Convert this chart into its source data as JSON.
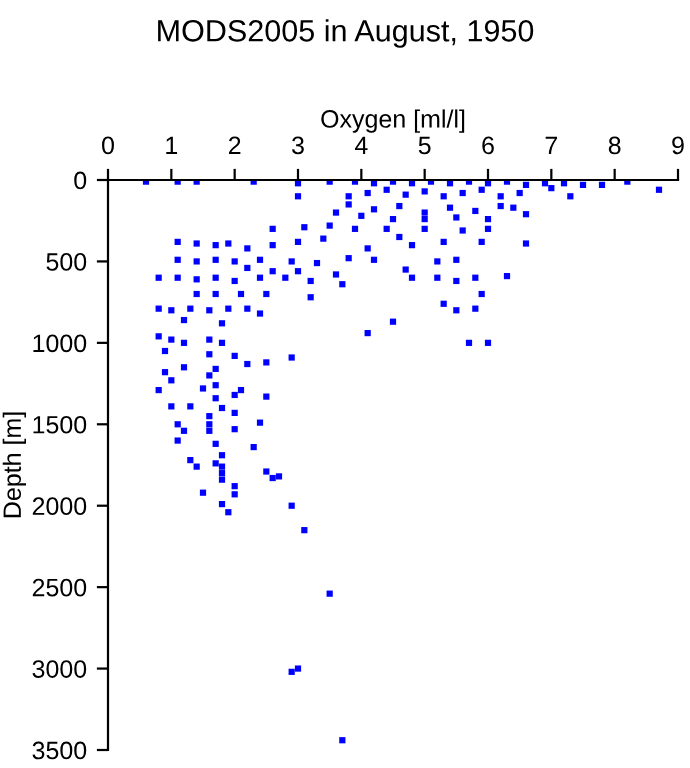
{
  "chart_data": {
    "type": "scatter",
    "title": "MODS2005 in August, 1950",
    "xlabel": "Oxygen [ml/l]",
    "ylabel": "Depth [m]",
    "xlim": [
      0,
      9
    ],
    "xticks": [
      0,
      1,
      2,
      3,
      4,
      5,
      6,
      7,
      8,
      9
    ],
    "ylim": [
      3500,
      0
    ],
    "yticks": [
      0,
      500,
      1000,
      1500,
      2000,
      2500,
      3000,
      3500
    ],
    "grid": false,
    "marker": "square",
    "series": [
      {
        "color": "#0000ff",
        "x": [
          0.6,
          1.1,
          1.4,
          2.3,
          3.0,
          3.5,
          3.9,
          4.2,
          4.5,
          4.8,
          5.1,
          5.4,
          5.7,
          6.0,
          6.3,
          6.6,
          6.9,
          7.2,
          7.5,
          7.8,
          8.2,
          8.7,
          3.8,
          4.1,
          4.4,
          4.7,
          5.0,
          5.3,
          5.6,
          5.9,
          6.2,
          6.5,
          7.0,
          7.3,
          3.0,
          3.8,
          4.2,
          4.6,
          5.0,
          5.4,
          5.8,
          6.2,
          6.6,
          4.0,
          4.5,
          5.0,
          5.5,
          6.0,
          3.6,
          6.4,
          2.6,
          3.1,
          3.5,
          3.9,
          4.4,
          5.0,
          5.6,
          6.0,
          4.6,
          5.3,
          5.9,
          6.6,
          3.4,
          3.0,
          2.6,
          2.2,
          1.9,
          1.1,
          1.4,
          1.7,
          4.1,
          4.8,
          1.1,
          1.4,
          1.7,
          2.0,
          2.4,
          2.9,
          3.3,
          3.8,
          4.2,
          5.2,
          5.5,
          4.7,
          3.0,
          3.6,
          2.6,
          2.2,
          0.8,
          1.1,
          1.4,
          1.7,
          2.0,
          2.4,
          2.8,
          3.2,
          3.7,
          4.8,
          5.2,
          5.8,
          6.3,
          5.5,
          1.4,
          1.7,
          2.1,
          2.5,
          3.2,
          5.3,
          5.5,
          5.8,
          5.9,
          0.8,
          1.0,
          1.3,
          1.6,
          1.9,
          2.2,
          2.4,
          1.2,
          1.8,
          4.5,
          4.1,
          0.8,
          1.0,
          1.2,
          1.6,
          1.8,
          5.7,
          6.0,
          0.9,
          1.6,
          2.0,
          2.9,
          2.5,
          2.2,
          0.9,
          1.2,
          1.7,
          1.0,
          1.6,
          1.7,
          0.8,
          1.5,
          2.1,
          1.7,
          2.0,
          2.5,
          1.0,
          1.3,
          1.8,
          2.0,
          1.6,
          1.1,
          1.6,
          2.4,
          1.2,
          1.6,
          2.0,
          1.1,
          1.7,
          2.3,
          1.8,
          1.3,
          1.7,
          1.4,
          1.8,
          1.8,
          2.6,
          2.5,
          2.7,
          1.5,
          1.8,
          2.0,
          2.0,
          1.8,
          1.9,
          2.9,
          3.1,
          3.5,
          2.9,
          3.0,
          3.7
        ],
        "values": [
          10,
          10,
          10,
          10,
          20,
          10,
          10,
          20,
          10,
          20,
          10,
          20,
          10,
          20,
          10,
          30,
          20,
          20,
          30,
          30,
          10,
          60,
          100,
          80,
          60,
          90,
          70,
          100,
          80,
          60,
          100,
          80,
          50,
          100,
          100,
          150,
          180,
          160,
          200,
          170,
          190,
          160,
          210,
          220,
          240,
          240,
          230,
          240,
          200,
          170,
          300,
          290,
          280,
          300,
          300,
          300,
          310,
          300,
          350,
          380,
          380,
          390,
          360,
          380,
          400,
          420,
          390,
          380,
          390,
          400,
          420,
          400,
          490,
          500,
          490,
          500,
          490,
          500,
          510,
          480,
          490,
          500,
          490,
          550,
          560,
          580,
          560,
          540,
          600,
          600,
          610,
          600,
          620,
          600,
          600,
          620,
          640,
          600,
          600,
          600,
          590,
          620,
          700,
          700,
          700,
          700,
          720,
          760,
          800,
          790,
          700,
          790,
          800,
          790,
          800,
          790,
          790,
          820,
          860,
          880,
          870,
          940,
          960,
          980,
          1000,
          980,
          1000,
          1000,
          1000,
          1050,
          1070,
          1080,
          1090,
          1120,
          1130,
          1180,
          1150,
          1160,
          1230,
          1200,
          1260,
          1290,
          1280,
          1290,
          1340,
          1320,
          1330,
          1390,
          1390,
          1400,
          1430,
          1450,
          1500,
          1500,
          1490,
          1540,
          1540,
          1530,
          1600,
          1620,
          1640,
          1690,
          1720,
          1740,
          1760,
          1760,
          1800,
          1830,
          1790,
          1820,
          1920,
          1840,
          1880,
          1930,
          1990,
          2040,
          2000,
          2150,
          2540,
          3020,
          3000,
          3440
        ]
      }
    ]
  }
}
